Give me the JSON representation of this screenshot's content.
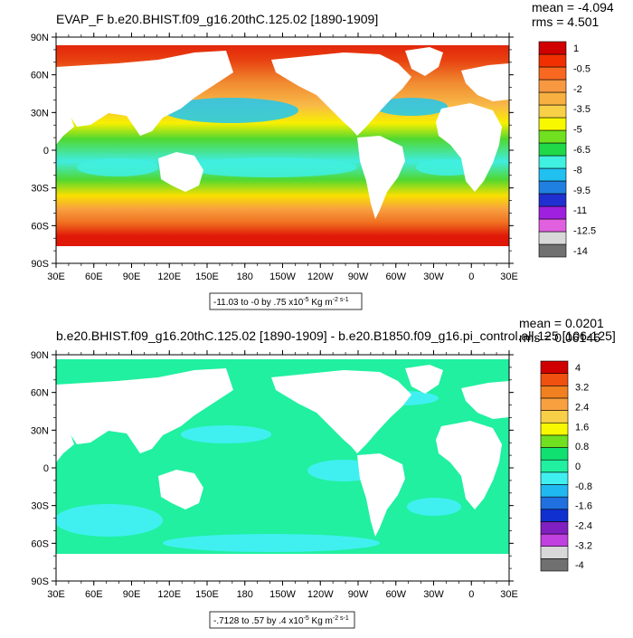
{
  "colors": {
    "ocean_land": "#ffffff",
    "frame": "#000000",
    "palette1": [
      "#707070",
      "#d8d8d8",
      "#e060e0",
      "#a020e0",
      "#2030d0",
      "#2080e0",
      "#20c0f0",
      "#40f0e0",
      "#20d848",
      "#70e020",
      "#f8f800",
      "#f8d048",
      "#f8b040",
      "#f89840",
      "#f86820",
      "#f03000",
      "#d00000"
    ],
    "palette2": [
      "#707070",
      "#d8d8d8",
      "#c040e0",
      "#8020c0",
      "#1030d0",
      "#2070e0",
      "#20b8f0",
      "#40f0f0",
      "#20f0a0",
      "#10e070",
      "#70e020",
      "#f8f800",
      "#f8d048",
      "#f8a040",
      "#f08020",
      "#f05010",
      "#d00000"
    ]
  },
  "chart_data": [
    {
      "type": "heatmap",
      "title": "EVAP_F b.e20.BHIST.f09_g16.20thC.125.02 [1890-1909]",
      "stats": {
        "mean": "mean = -4.094",
        "rms": "rms = 4.501"
      },
      "x_ticks": [
        "30E",
        "60E",
        "90E",
        "120E",
        "150E",
        "180",
        "150W",
        "120W",
        "90W",
        "60W",
        "30W",
        "0",
        "30E"
      ],
      "y_ticks": [
        "90N",
        "60N",
        "30N",
        "0",
        "30S",
        "60S",
        "90S"
      ],
      "colorbar_labels": [
        "1",
        "-0.5",
        "-2",
        "-3.5",
        "-5",
        "-6.5",
        "-8",
        "-9.5",
        "-11",
        "-12.5",
        "-14"
      ],
      "contour_info": "-11.03 to -0 by .75 x10",
      "contour_info_exp": "-5",
      "contour_info_units": " Kg m",
      "contour_info_units_exp": "-2 s-1"
    },
    {
      "type": "heatmap",
      "title": "b.e20.BHIST.f09_g16.20thC.125.02 [1890-1909] - b.e20.B1850.f09_g16.pi_control.all.125 [106-125]",
      "stats": {
        "mean": "mean = 0.0201",
        "rms": "rms = 0.06146"
      },
      "x_ticks": [
        "30E",
        "60E",
        "90E",
        "120E",
        "150E",
        "180",
        "150W",
        "120W",
        "90W",
        "60W",
        "30W",
        "0",
        "30E"
      ],
      "y_ticks": [
        "90N",
        "60N",
        "30N",
        "0",
        "30S",
        "60S",
        "90S"
      ],
      "colorbar_labels": [
        "4",
        "3.2",
        "2.4",
        "1.6",
        "0.8",
        "0",
        "-0.8",
        "-1.6",
        "-2.4",
        "-3.2",
        "-4"
      ],
      "contour_info": "-.7128 to .57 by .4 x10",
      "contour_info_exp": "-5",
      "contour_info_units": " Kg m",
      "contour_info_units_exp": "-2 s-1"
    }
  ]
}
